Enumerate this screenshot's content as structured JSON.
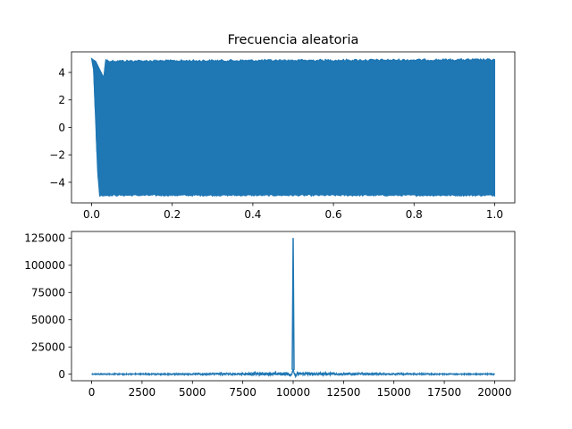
{
  "chart_data": [
    {
      "type": "line",
      "title": "Frecuencia aleatoria",
      "xlabel": "",
      "ylabel": "",
      "xlim": [
        -0.05,
        1.05
      ],
      "ylim": [
        -5.5,
        5.5
      ],
      "x_ticks": [
        0.0,
        0.2,
        0.4,
        0.6,
        0.8,
        1.0
      ],
      "x_tick_labels": [
        "0.0",
        "0.2",
        "0.4",
        "0.6",
        "0.8",
        "1.0"
      ],
      "y_ticks": [
        4,
        2,
        0,
        -2,
        -4
      ],
      "y_tick_labels": [
        "4",
        "2",
        "0",
        "−2",
        "−4"
      ],
      "grid": false,
      "color": "#1f77b4",
      "series": [
        {
          "description_values": {
            "envelope_upper": [
              [
                0.0,
                5.0
              ],
              [
                0.01,
                4.8
              ],
              [
                0.02,
                4.2
              ],
              [
                0.03,
                3.6
              ],
              [
                0.035,
                4.9
              ],
              [
                1.0,
                5.0
              ]
            ],
            "envelope_lower": [
              [
                0.0,
                5.0
              ],
              [
                0.005,
                4.2
              ],
              [
                0.01,
                0.5
              ],
              [
                0.015,
                -3.2
              ],
              [
                0.02,
                -5.0
              ],
              [
                1.0,
                -5.0
              ]
            ]
          }
        }
      ]
    },
    {
      "type": "line",
      "title": "",
      "xlabel": "",
      "ylabel": "",
      "xlim": [
        -1000,
        21000
      ],
      "ylim": [
        -6000,
        131000
      ],
      "x_ticks": [
        0,
        2500,
        5000,
        7500,
        10000,
        12500,
        15000,
        17500,
        20000
      ],
      "x_tick_labels": [
        "0",
        "2500",
        "5000",
        "7500",
        "10000",
        "12500",
        "15000",
        "17500",
        "20000"
      ],
      "y_ticks": [
        0,
        25000,
        50000,
        75000,
        100000,
        125000
      ],
      "y_tick_labels": [
        "0",
        "25000",
        "50000",
        "75000",
        "100000",
        "125000"
      ],
      "grid": false,
      "color": "#1f77b4",
      "series": [
        {
          "peak": {
            "x": 10000,
            "y": 125000
          },
          "noise_band": [
            -1500,
            3500
          ],
          "x_range": [
            0,
            20000
          ]
        }
      ]
    }
  ]
}
